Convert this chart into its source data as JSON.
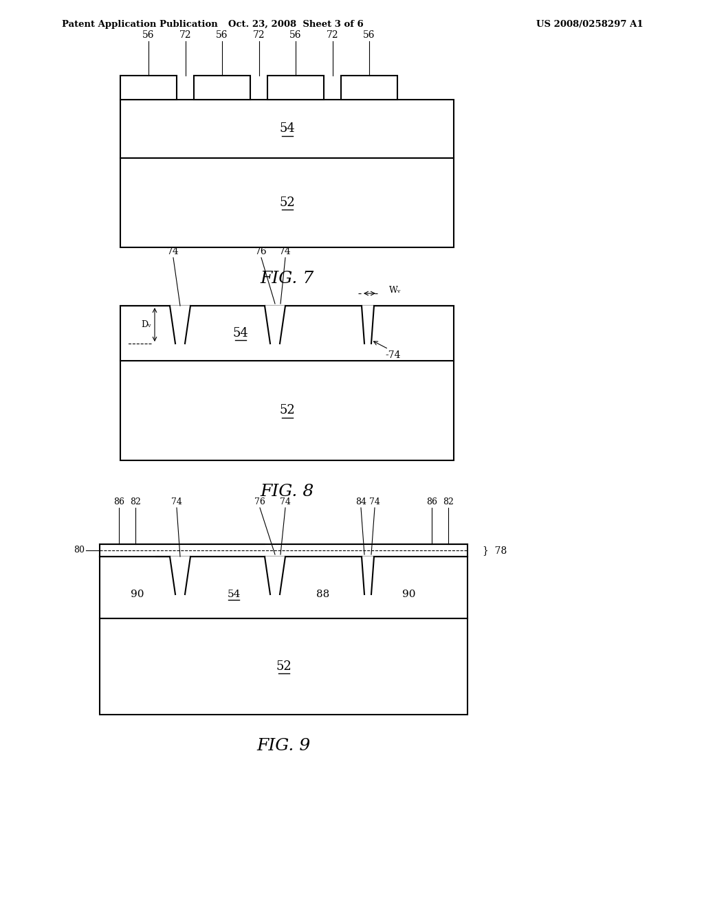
{
  "bg_color": "#ffffff",
  "line_color": "#000000",
  "header_left": "Patent Application Publication",
  "header_center": "Oct. 23, 2008  Sheet 3 of 6",
  "header_right": "US 2008/0258297 A1",
  "fig7_label": "FIG. 7",
  "fig8_label": "FIG. 8",
  "fig9_label": "FIG. 9"
}
